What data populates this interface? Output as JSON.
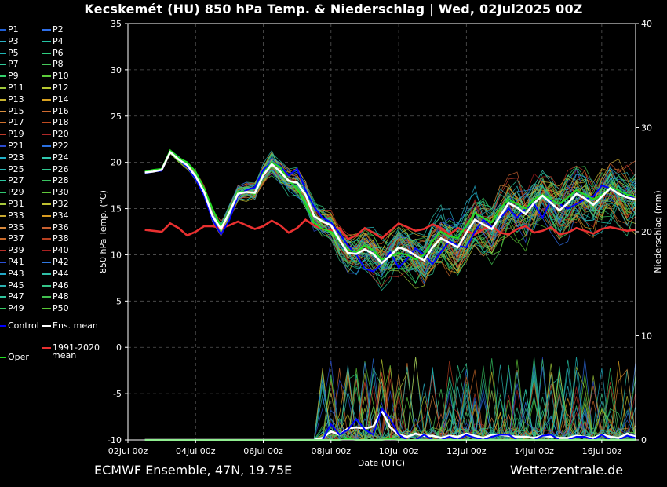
{
  "title": "Kecskemét  (HU)  850 hPa Temp. & Niederschlag | Wed, 02Jul2025 00Z",
  "footer_left": "ECMWF Ensemble, 47N, 19.75E",
  "footer_right": "Wetterzentrale.de",
  "legend": {
    "members": [
      "P1",
      "P2",
      "P3",
      "P4",
      "P5",
      "P6",
      "P7",
      "P8",
      "P9",
      "P10",
      "P11",
      "P12",
      "P13",
      "P14",
      "P15",
      "P16",
      "P17",
      "P18",
      "P19",
      "P20",
      "P21",
      "P22",
      "P23",
      "P24",
      "P25",
      "P26",
      "P27",
      "P28",
      "P29",
      "P30",
      "P31",
      "P32",
      "P33",
      "P34",
      "P35",
      "P36",
      "P37",
      "P38",
      "P39",
      "P40",
      "P41",
      "P42",
      "P43",
      "P44",
      "P45",
      "P46",
      "P47",
      "P48",
      "P49",
      "P50"
    ],
    "member_colors": [
      "#1f5fd6",
      "#2f6fe8",
      "#2ab0c4",
      "#24c4a4",
      "#1fb8b8",
      "#2fd080",
      "#2fcc9a",
      "#46c85a",
      "#34d06a",
      "#5ccc3a",
      "#9ec83a",
      "#b8c830",
      "#c8b430",
      "#d8a020",
      "#d89040",
      "#d06a30",
      "#d0702a",
      "#c04a20",
      "#c03a28",
      "#b02828",
      "#2a4ad0",
      "#2a70e0",
      "#20b0c8",
      "#30c8b0",
      "#28b8b8",
      "#30c890",
      "#2cc8a0",
      "#3ac460",
      "#30c870",
      "#60c83a",
      "#a8c83a",
      "#c0c030",
      "#c8a830",
      "#d89a20",
      "#d8883a",
      "#c86030",
      "#c86828",
      "#b84020",
      "#b83028",
      "#a82020",
      "#2a50d8",
      "#3078e0",
      "#22a8c8",
      "#30c0a8",
      "#2ab0b0",
      "#34c488",
      "#30c49c",
      "#42c050",
      "#36c864",
      "#58c836"
    ],
    "control": "Control",
    "control_color": "#0000ff",
    "ens_mean": "Ens. mean",
    "ens_mean_color": "#ffffff",
    "oper": "Oper",
    "oper_color": "#22dd22",
    "clim_line1": "1991-2020",
    "clim_line2": "mean",
    "clim_color": "#e83030"
  },
  "chart_data": {
    "type": "line",
    "title": "Kecskemét  (HU)  850 hPa Temp. & Niederschlag | Wed, 02Jul2025 00Z",
    "xlabel": "Date (UTC)",
    "ylabel": "850 hPa Temp. (°C)",
    "y2label": "Niederschlag (mm)",
    "xlim": [
      0,
      15
    ],
    "ylim": [
      -10,
      35
    ],
    "y2lim": [
      0,
      40
    ],
    "grid": true,
    "x_tick_labels": [
      "02Jul 00z",
      "04Jul 00z",
      "06Jul 00z",
      "08Jul 00z",
      "10Jul 00z",
      "12Jul 00z",
      "14Jul 00z",
      "16Jul 00z"
    ],
    "x_tick_days": [
      0,
      2,
      4,
      6,
      8,
      10,
      12,
      14
    ],
    "y_ticks": [
      35,
      30,
      25,
      20,
      15,
      10,
      5,
      0,
      -5,
      -10
    ],
    "y2_ticks": [
      40,
      30,
      20,
      10,
      0
    ],
    "x_days": [
      0.5,
      0.75,
      1,
      1.25,
      1.5,
      1.75,
      2,
      2.25,
      2.5,
      2.75,
      3,
      3.25,
      3.5,
      3.75,
      4,
      4.25,
      4.5,
      4.75,
      5,
      5.25,
      5.5,
      5.75,
      6,
      6.25,
      6.5,
      6.75,
      7,
      7.25,
      7.5,
      7.75,
      8,
      8.25,
      8.5,
      8.75,
      9,
      9.25,
      9.5,
      9.75,
      10,
      10.25,
      10.5,
      10.75,
      11,
      11.25,
      11.5,
      11.75,
      12,
      12.25,
      12.5,
      12.75,
      13,
      13.25,
      13.5,
      13.75,
      14,
      14.25,
      14.5,
      14.75,
      15
    ],
    "series": [
      {
        "name": "Control",
        "axis": "temp",
        "color": "#0000ff",
        "values": [
          18.8,
          19,
          19.1,
          21.2,
          20.3,
          19.5,
          18.2,
          16.4,
          13.8,
          12.2,
          13.8,
          16.4,
          17,
          17.3,
          19.2,
          20,
          19.6,
          18.6,
          19.3,
          17,
          15.2,
          14,
          13.5,
          12.3,
          11,
          10,
          8.5,
          8.2,
          9,
          10.3,
          8.6,
          9.6,
          10.7,
          10,
          9,
          10.3,
          11.5,
          11,
          10.8,
          12.5,
          13.8,
          13,
          14,
          15,
          14,
          15,
          15.5,
          14,
          16,
          15.5,
          15,
          15.5,
          16,
          16.3,
          17.5,
          17.2,
          17,
          16.5,
          16
        ]
      },
      {
        "name": "Ens. mean",
        "axis": "temp",
        "color": "#ffffff",
        "values": [
          18.9,
          19,
          19.2,
          21.1,
          20.3,
          19.7,
          18.5,
          16.8,
          14.2,
          12.8,
          14.6,
          16.6,
          16.8,
          16.7,
          18.6,
          19.8,
          19,
          18,
          17.8,
          16.5,
          14.2,
          13.6,
          13.2,
          11.6,
          10.2,
          10.1,
          10.6,
          10.1,
          9.1,
          9.9,
          10.8,
          10.5,
          9.9,
          9.4,
          10.8,
          11.8,
          11.3,
          10.8,
          12.4,
          13.8,
          13.3,
          12.8,
          14.2,
          15.6,
          15.1,
          14.4,
          15.6,
          16.4,
          15.6,
          14.8,
          15.6,
          16.6,
          16.1,
          15.4,
          16.3,
          17.2,
          16.6,
          16.2,
          16
        ]
      },
      {
        "name": "Oper",
        "axis": "temp",
        "color": "#22dd22",
        "values": [
          19,
          19.2,
          19.3,
          21.3,
          20.5,
          20,
          19,
          17.2,
          15,
          13,
          14.8,
          16.8,
          16.8,
          16.6,
          18.8,
          20,
          19.5,
          18,
          17.2,
          15.5,
          13.5,
          12.8,
          12.5,
          11.5,
          10.5,
          10.3,
          11,
          10.5,
          9.5,
          9.8,
          10.2,
          10,
          9.5,
          10,
          11.5,
          12.5,
          12,
          11.8,
          13.2,
          14.5,
          14,
          13.5,
          15,
          16,
          15.5,
          15,
          16,
          16.5,
          16,
          15.5,
          16.2,
          17,
          16.5,
          16,
          16.5,
          17.3,
          17,
          16.5,
          16.3
        ]
      },
      {
        "name": "1991-2020 mean",
        "axis": "temp",
        "color": "#e83030",
        "values": [
          12.7,
          12.6,
          12.5,
          13.4,
          12.9,
          12.1,
          12.5,
          13.1,
          13.1,
          12.9,
          13.2,
          13.6,
          13.2,
          12.8,
          13.1,
          13.7,
          13.2,
          12.4,
          12.9,
          13.8,
          13.2,
          12.8,
          12.6,
          12.9,
          11.7,
          12.1,
          12.9,
          12.4,
          11.8,
          12.6,
          13.4,
          13,
          12.6,
          12.8,
          13.3,
          12.9,
          12.2,
          12.9,
          12.6,
          12.2,
          12.8,
          13.1,
          12.4,
          12.2,
          12.8,
          13.1,
          12.4,
          12.6,
          13,
          12.2,
          12.4,
          12.9,
          12.6,
          12.3,
          12.8,
          13,
          12.8,
          12.6,
          12.7
        ]
      },
      {
        "name": "Ens. mean",
        "axis": "precip",
        "color": "#ffffff",
        "values": [
          0,
          0,
          0,
          0,
          0,
          0,
          0,
          0,
          0,
          0,
          0,
          0,
          0,
          0,
          0,
          0,
          0,
          0,
          0,
          0,
          0,
          0.2,
          0.8,
          0.5,
          1.1,
          1.2,
          1.1,
          1.3,
          2.8,
          1.2,
          0.5,
          0.3,
          0.6,
          0.4,
          0.4,
          0.2,
          0.4,
          0.3,
          0.6,
          0.4,
          0.2,
          0.5,
          0.5,
          0.4,
          0.3,
          0.3,
          0.2,
          0.4,
          0.3,
          0.2,
          0.2,
          0.4,
          0.3,
          0.2,
          0.5,
          0.3,
          0.2,
          0.6,
          0.3
        ]
      },
      {
        "name": "Control",
        "axis": "precip",
        "color": "#0000ff",
        "values": [
          0,
          0,
          0,
          0,
          0,
          0,
          0,
          0,
          0,
          0,
          0,
          0,
          0,
          0,
          0,
          0,
          0,
          0,
          0,
          0,
          0,
          0,
          1.5,
          0.5,
          1,
          2,
          1,
          0.5,
          3,
          2,
          0.5,
          0,
          0,
          0.5,
          0,
          0,
          0.3,
          0,
          0.5,
          0.2,
          0,
          0.3,
          0.5,
          0.5,
          0,
          0,
          0,
          0.4,
          0.5,
          0,
          0,
          0.3,
          0.3,
          0,
          0.5,
          0,
          0,
          0.4,
          0.2
        ]
      },
      {
        "name": "Oper",
        "axis": "precip",
        "color": "#22dd22",
        "values": [
          0,
          0,
          0,
          0,
          0,
          0,
          0,
          0,
          0,
          0,
          0,
          0,
          0,
          0,
          0,
          0,
          0,
          0,
          0,
          0,
          0,
          0,
          0,
          0,
          0.1,
          0,
          0,
          0,
          0,
          0.1,
          0,
          0,
          0,
          0,
          0,
          0,
          0,
          0,
          0,
          0,
          0,
          0,
          0,
          0,
          0,
          0,
          0,
          0,
          0,
          0,
          0,
          0,
          0,
          0,
          0,
          0,
          0,
          0,
          0
        ]
      }
    ]
  }
}
